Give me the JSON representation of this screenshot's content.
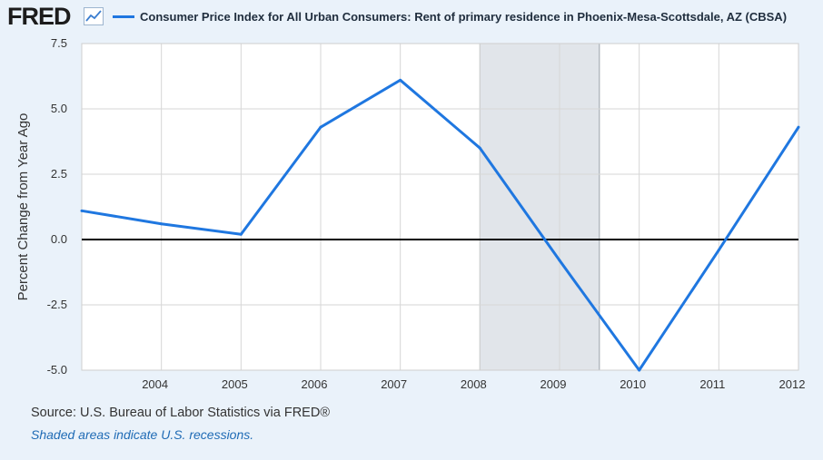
{
  "header": {
    "logo_text": "FRED",
    "logo_icon": "line-chart-icon"
  },
  "chart_data": {
    "type": "line",
    "title": "Consumer Price Index for All Urban Consumers: Rent of primary residence in Phoenix-Mesa-Scottsdale, AZ (CBSA)",
    "xlabel": "",
    "ylabel": "Percent Change from Year Ago",
    "xlim": [
      2003,
      2012
    ],
    "ylim": [
      -5.0,
      7.5
    ],
    "x_ticks": [
      2004,
      2005,
      2006,
      2007,
      2008,
      2009,
      2010,
      2011,
      2012
    ],
    "y_ticks": [
      7.5,
      5.0,
      2.5,
      0.0,
      -2.5,
      -5.0
    ],
    "y_tick_labels": [
      "7.5",
      "5.0",
      "2.5",
      "0.0",
      "-2.5",
      "-5.0"
    ],
    "grid": true,
    "zero_line": true,
    "recessions": [
      [
        2008.0,
        2009.5
      ]
    ],
    "series": [
      {
        "name": "Consumer Price Index for All Urban Consumers: Rent of primary residence in Phoenix-Mesa-Scottsdale, AZ (CBSA)",
        "color": "#1f77e0",
        "x": [
          2003,
          2004,
          2005,
          2006,
          2007,
          2008,
          2009,
          2010,
          2011,
          2012
        ],
        "values": [
          1.1,
          0.6,
          0.2,
          4.3,
          6.1,
          3.5,
          -0.8,
          -5.0,
          -0.4,
          4.3
        ]
      }
    ]
  },
  "footer": {
    "source": "Source: U.S. Bureau of Labor Statistics via FRED®",
    "note": "Shaded areas indicate U.S. recessions."
  },
  "colors": {
    "background": "#eaf2fa",
    "plot_background": "#ffffff",
    "recession_shade": "#e1e5ea",
    "series_line": "#1f77e0",
    "note_link": "#1f6bb5"
  }
}
